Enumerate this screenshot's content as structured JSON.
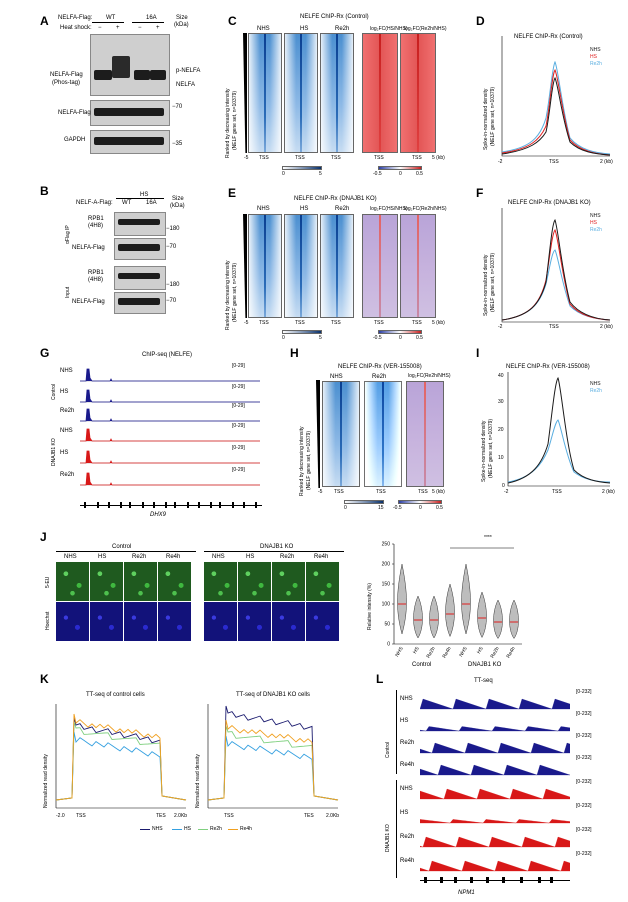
{
  "panels": {
    "A": "A",
    "B": "B",
    "C": "C",
    "D": "D",
    "E": "E",
    "F": "F",
    "G": "G",
    "H": "H",
    "I": "I",
    "J": "J",
    "K": "K",
    "L": "L"
  },
  "A": {
    "row1_label": "NELFA-Flag:",
    "wt": "WT",
    "m16a": "16A",
    "size": "Size",
    "kda": "(kDa)",
    "heat_label": "Heat shock:",
    "minus": "−",
    "plus": "+",
    "blot1_label": "NELFA-Flag",
    "blot1_sub": "(Phos-tag)",
    "pnelfa": "p-NELFA",
    "nelfa": "NELFA",
    "blot2_label": "NELFA-Flag",
    "blot3_label": "GAPDH",
    "m70": "−70",
    "m35": "−35"
  },
  "B": {
    "header": "NELF-A-Flag:",
    "hs": "HS",
    "wt": "WT",
    "m16a": "16A",
    "size": "Size",
    "kda": "(kDa)",
    "ip": "αFlag IP",
    "input": "Input",
    "rpb1": "RPB1",
    "clone": "(4H8)",
    "nelf": "NELFA-Flag",
    "m180": "−180",
    "m70": "−70"
  },
  "C": {
    "title": "NELFE ChIP-Rx (Control)",
    "cols": [
      "NHS",
      "HS",
      "Re2h",
      "log₂FC(HS/NHS)",
      "log₂FC(Re2h/NHS)"
    ],
    "ylabel": "Ranked by decreasing intensity",
    "ysub": "(NELF gene set, n=10379)",
    "x5": "-5",
    "tss": "TSS",
    "p5": "5",
    "kb": "5 (kb)",
    "cb1": [
      "0",
      "5"
    ],
    "cb2": [
      "-0.5",
      "0",
      "0.5"
    ]
  },
  "D": {
    "title": "NELFE ChIP-Rx (Control)",
    "ylabel": "Spike-in-normalized density",
    "ysub": "(NELF gene set, n=10379)",
    "legend": [
      "NHS",
      "HS",
      "Re2h"
    ],
    "xticks": [
      "-2",
      "TSS",
      "2 (kb)"
    ]
  },
  "E": {
    "title": "NELFE ChIP-Rx (DNAJB1 KO)",
    "cols": [
      "NHS",
      "HS",
      "Re2h",
      "log₂FC(HS/NHS)",
      "log₂FC(Re2h/NHS)"
    ],
    "ylabel": "Ranked by decreasing intensity",
    "ysub": "(NELF gene set, n=10379)"
  },
  "F": {
    "title": "NELFE ChIP-Rx (DNAJB1 KO)",
    "ylabel": "Spike-in-normalized density",
    "ysub": "(NELF gene set, n=10379)",
    "legend": [
      "NHS",
      "HS",
      "Re2h"
    ]
  },
  "G": {
    "title": "ChIP-seq (NELFE)",
    "range": "[0-29]",
    "tracks": [
      "NHS",
      "HS",
      "Re2h",
      "NHS",
      "HS",
      "Re2h"
    ],
    "groups": [
      "Control",
      "DNAJB1 KO"
    ],
    "gene": "DHX9"
  },
  "H": {
    "title": "NELFE ChIP-Rx (VER-155008)",
    "cols": [
      "NHS",
      "Re2h",
      "log₂FC(Re2h/NHS)"
    ],
    "ylabel": "Ranked by decreasing intensity",
    "ysub": "(NELF gene set, n=10379)",
    "cb1": [
      "0",
      "15"
    ],
    "cb2": [
      "-0.5",
      "0",
      "0.5"
    ]
  },
  "I": {
    "title": "NELFE ChIP-Rx (VER-155008)",
    "ylabel": "Spike-in-normalized density",
    "ysub": "(NELF gene set, n=10379)",
    "legend": [
      "NHS",
      "Re2h"
    ],
    "yticks": [
      "0",
      "10",
      "20",
      "30",
      "40"
    ]
  },
  "J": {
    "groups": [
      "Control",
      "DNAJB1 KO"
    ],
    "conds": [
      "NHS",
      "HS",
      "Re2h",
      "Re4h"
    ],
    "rows": [
      "5-EU",
      "Hoechst"
    ],
    "ylabel": "Relative intensity (%)",
    "yticks": [
      "0",
      "50",
      "100",
      "150",
      "200",
      "250"
    ],
    "sig": "****"
  },
  "K": {
    "title1": "TT-seq of control cells",
    "title2": "TT-seq of DNAJB1 KO cells",
    "ylabel": "Normalized read density",
    "xticks": [
      "-2.0",
      "TSS",
      "TES",
      "2.0Kb"
    ],
    "legend": [
      "NHS",
      "HS",
      "Re2h",
      "Re4h"
    ]
  },
  "L": {
    "title": "TT-seq",
    "range": "[0-232]",
    "tracks": [
      "NHS",
      "HS",
      "Re2h",
      "Re4h",
      "NHS",
      "HS",
      "Re2h",
      "Re4h"
    ],
    "groups": [
      "Control",
      "DNAJB1 KO"
    ],
    "gene": "NPM1"
  },
  "colors": {
    "nhs": "#1a1a6e",
    "hs": "#e02020",
    "re2h": "#5aaee0",
    "re4h": "#f0a020",
    "hs_k": "#35a0e0",
    "re2h_k": "#80d080",
    "ctrl_track": "#1a1a8c",
    "ko_track": "#d81818"
  },
  "chart_data": {
    "type": "violin",
    "categories": [
      "NHS",
      "HS",
      "Re2h",
      "Re4h",
      "NHS",
      "HS",
      "Re2h",
      "Re4h"
    ],
    "groups": [
      "Control",
      "Control",
      "Control",
      "Control",
      "DNAJB1 KO",
      "DNAJB1 KO",
      "DNAJB1 KO",
      "DNAJB1 KO"
    ],
    "medians": [
      100,
      60,
      60,
      75,
      100,
      65,
      55,
      55
    ],
    "ylabel": "Relative intensity (%)",
    "ylim": [
      0,
      250
    ]
  }
}
